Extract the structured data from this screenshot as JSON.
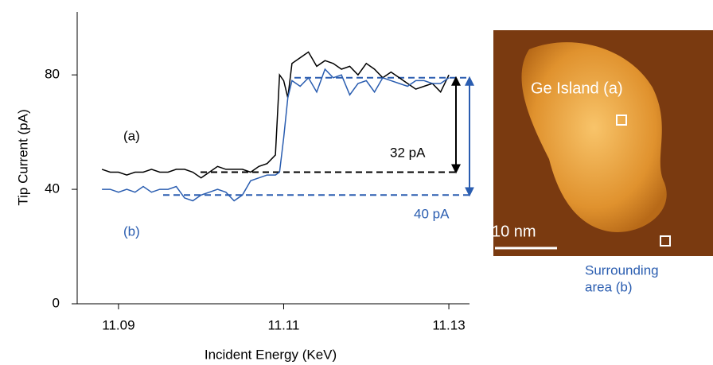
{
  "chart_data": {
    "type": "line",
    "y_label": "Tip Current (pA)",
    "x_label": "Incident Energy (KeV)",
    "xlim": [
      11.085,
      11.1325
    ],
    "ylim": [
      0,
      102
    ],
    "xticks": [
      11.09,
      11.11,
      11.13
    ],
    "yticks": [
      0,
      40,
      80
    ],
    "x": [
      11.088,
      11.089,
      11.09,
      11.091,
      11.092,
      11.093,
      11.094,
      11.095,
      11.096,
      11.097,
      11.098,
      11.099,
      11.1,
      11.101,
      11.102,
      11.103,
      11.104,
      11.105,
      11.106,
      11.107,
      11.108,
      11.109,
      11.1095,
      11.11,
      11.1105,
      11.111,
      11.112,
      11.113,
      11.114,
      11.115,
      11.116,
      11.117,
      11.118,
      11.119,
      11.12,
      11.121,
      11.122,
      11.123,
      11.124,
      11.125,
      11.126,
      11.127,
      11.128,
      11.129,
      11.13
    ],
    "series": [
      {
        "color": "#000000",
        "values": [
          47,
          46,
          46,
          45,
          46,
          46,
          47,
          46,
          46,
          47,
          47,
          46,
          44,
          46,
          48,
          47,
          47,
          47,
          46,
          48,
          49,
          52,
          80,
          78,
          72,
          84,
          86,
          88,
          83,
          85,
          84,
          82,
          83,
          80,
          84,
          82,
          79,
          81,
          79,
          77,
          75,
          76,
          77,
          74,
          80
        ]
      },
      {
        "color": "#2a5db0",
        "values": [
          40,
          40,
          39,
          40,
          39,
          41,
          39,
          40,
          40,
          41,
          37,
          36,
          38,
          39,
          40,
          39,
          36,
          38,
          43,
          44,
          45,
          45,
          46,
          58,
          72,
          78,
          76,
          79,
          74,
          82,
          79,
          80,
          73,
          77,
          78,
          74,
          79,
          78,
          77,
          76,
          78,
          78,
          77,
          77,
          79
        ]
      }
    ],
    "levels": [
      {
        "value": 79,
        "color": "#2a5db0"
      },
      {
        "value": 46,
        "color": "#000000"
      },
      {
        "value": 38,
        "color": "#2a5db0"
      }
    ],
    "annotations": [
      {
        "text": "(a)",
        "color": "#000000"
      },
      {
        "text": "(b)",
        "color": "#2a5db0"
      },
      {
        "text": "32 pA",
        "color": "#000000"
      },
      {
        "text": "40 pA",
        "color": "#2a5db0"
      }
    ]
  },
  "image": {
    "island_label": "Ge Island (a)",
    "scale_label": "10 nm",
    "caption": [
      "Surrounding",
      "area (b)"
    ]
  }
}
